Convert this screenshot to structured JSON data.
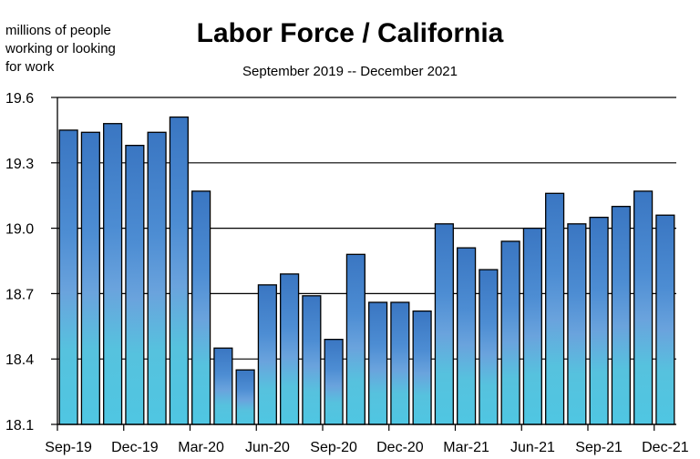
{
  "chart_data": {
    "type": "bar",
    "title": "Labor Force / California",
    "subtitle": "September 2019 -- December 2021",
    "ylabel_lines": [
      "millions of people",
      "working or looking",
      "for work"
    ],
    "xlabel": "",
    "ylim": [
      18.1,
      19.6
    ],
    "yticks": [
      "19.6",
      "19.3",
      "19.0",
      "18.7",
      "18.4",
      "18.1"
    ],
    "ytick_values": [
      19.6,
      19.3,
      19.0,
      18.7,
      18.4,
      18.1
    ],
    "xtick_labels": [
      "Sep-19",
      "Dec-19",
      "Mar-20",
      "Jun-20",
      "Sep-20",
      "Dec-20",
      "Mar-21",
      "Jun-21",
      "Sep-21",
      "Dec-21"
    ],
    "grid": true,
    "categories": [
      "Sep-19",
      "Oct-19",
      "Nov-19",
      "Dec-19",
      "Jan-20",
      "Feb-20",
      "Mar-20",
      "Apr-20",
      "May-20",
      "Jun-20",
      "Jul-20",
      "Aug-20",
      "Sep-20",
      "Oct-20",
      "Nov-20",
      "Dec-20",
      "Jan-21",
      "Feb-21",
      "Mar-21",
      "Apr-21",
      "May-21",
      "Jun-21",
      "Jul-21",
      "Aug-21",
      "Sep-21",
      "Oct-21",
      "Nov-21",
      "Dec-21"
    ],
    "values": [
      19.45,
      19.44,
      19.48,
      19.38,
      19.44,
      19.51,
      19.17,
      18.45,
      18.35,
      18.74,
      18.79,
      18.69,
      18.49,
      18.88,
      18.66,
      18.66,
      18.62,
      19.02,
      18.91,
      18.81,
      18.94,
      19.0,
      19.16,
      19.02,
      19.05,
      19.1,
      19.17,
      19.06
    ],
    "colors": {
      "bar_top": "#3f7fc8",
      "bar_mid": "#5a9ad9",
      "bar_bottom": "#55c9e0",
      "bar_outline": "#000000",
      "grid": "#000000"
    }
  }
}
